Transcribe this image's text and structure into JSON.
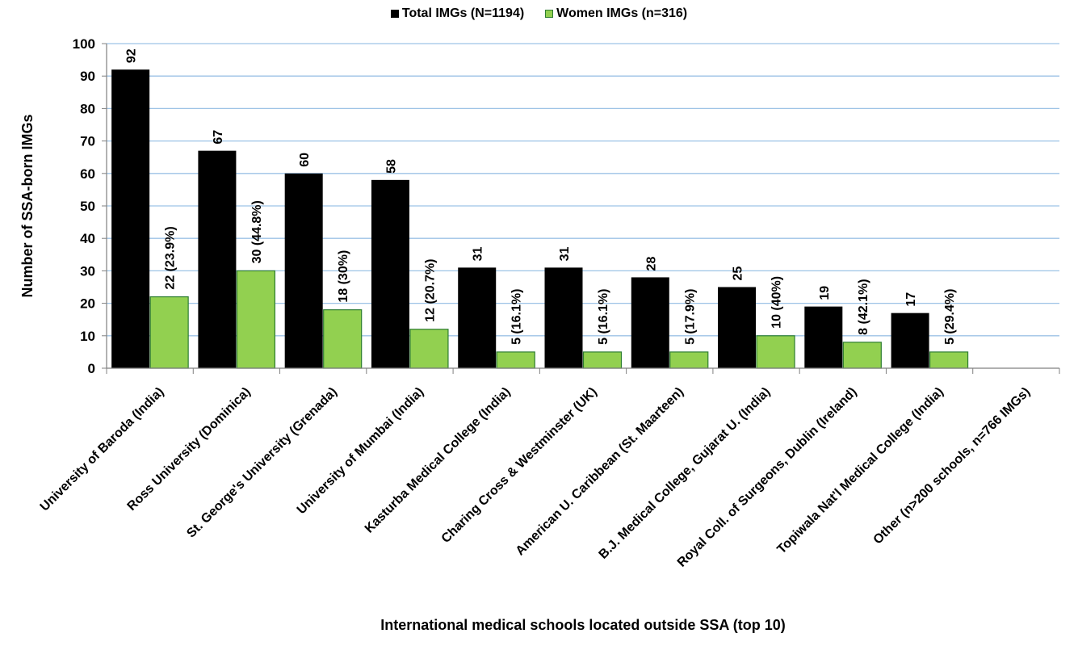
{
  "chart_data": {
    "type": "bar",
    "xlabel": "International medical schools located outside SSA (top 10)",
    "ylabel": "Number of SSA-born IMGs",
    "ylim": [
      0,
      100
    ],
    "yticks": [
      0,
      10,
      20,
      30,
      40,
      50,
      60,
      70,
      80,
      90,
      100
    ],
    "grid": true,
    "legend_position": "top-center",
    "categories": [
      "University of Baroda (India)",
      "Ross University (Dominica)",
      "St. George's University (Grenada)",
      "University of Mumbai (India)",
      "Kasturba Medical College (India)",
      "Charing Cross & Westminster (UK)",
      "American U. Caribbean (St. Maarteen)",
      "B.J. Medical College, Gujarat U. (India)",
      "Royal Coll. of Surgeons, Dublin (Ireland)",
      "Topiwala Nat'l Medical College (India)",
      "Other (n>200 schools, n=766 IMGs)"
    ],
    "series": [
      {
        "name": "Total IMGs (N=1194)",
        "color": "#000000",
        "values": [
          92,
          67,
          60,
          58,
          31,
          31,
          28,
          25,
          19,
          17,
          null
        ],
        "labels": [
          "92",
          "67",
          "60",
          "58",
          "31",
          "31",
          "28",
          "25",
          "19",
          "17",
          ""
        ]
      },
      {
        "name": "Women IMGs (n=316)",
        "color": "#92d050",
        "values": [
          22,
          30,
          18,
          12,
          5,
          5,
          5,
          10,
          8,
          5,
          null
        ],
        "labels": [
          "22 (23.9%)",
          "30 (44.8%)",
          "18 (30%)",
          "12 (20.7%)",
          "5 (16.1%)",
          "5 (16.1%)",
          "5 (17.9%)",
          "10 (40%)",
          "8 (42.1%)",
          "5 (29.4%)",
          ""
        ]
      }
    ]
  }
}
